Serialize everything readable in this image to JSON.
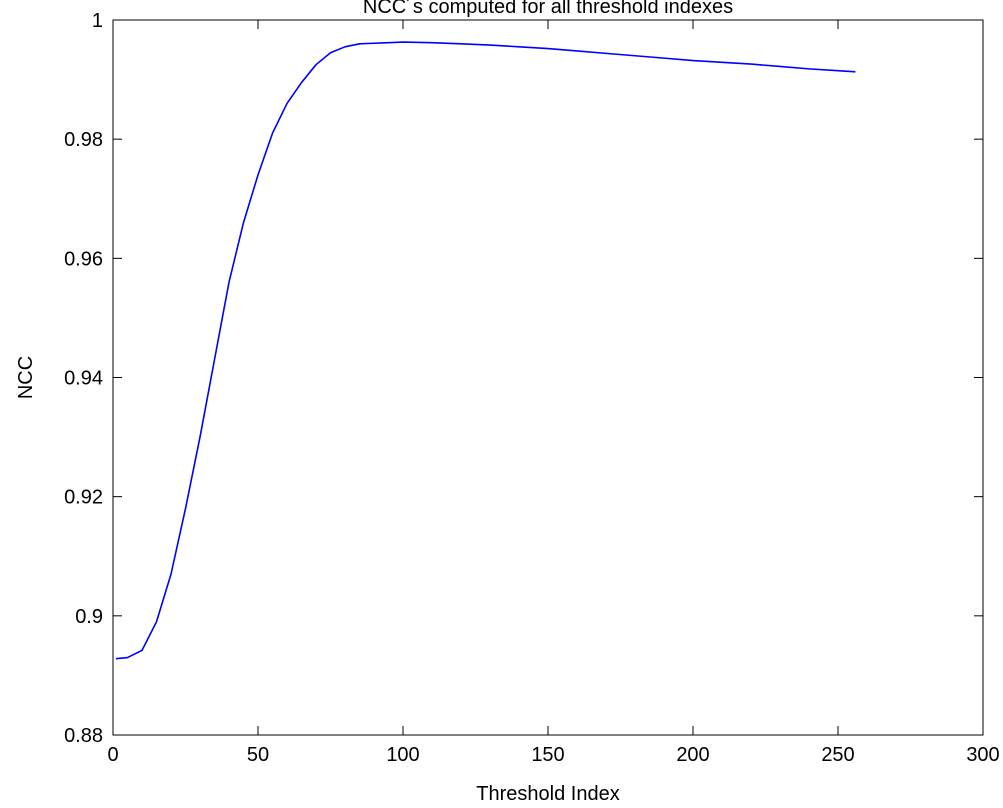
{
  "chart_data": {
    "type": "line",
    "title": "NCC´s computed for all threshold indexes",
    "xlabel": "Threshold Index",
    "ylabel": "NCC",
    "xlim": [
      0,
      300
    ],
    "ylim": [
      0.88,
      1
    ],
    "xticks": [
      0,
      50,
      100,
      150,
      200,
      250,
      300
    ],
    "xtick_labels": [
      "0",
      "50",
      "100",
      "150",
      "200",
      "250",
      "300"
    ],
    "yticks": [
      0.88,
      0.9,
      0.92,
      0.94,
      0.96,
      0.98,
      1
    ],
    "ytick_labels": [
      "0.88",
      "0.9",
      "0.92",
      "0.94",
      "0.96",
      "0.98",
      "1"
    ],
    "grid": false,
    "series": [
      {
        "color": "#0000ff",
        "x": [
          1,
          5,
          10,
          15,
          20,
          25,
          30,
          35,
          40,
          45,
          50,
          55,
          60,
          65,
          70,
          75,
          80,
          85,
          90,
          95,
          100,
          110,
          120,
          130,
          140,
          150,
          160,
          170,
          180,
          190,
          200,
          210,
          220,
          230,
          240,
          250,
          256
        ],
        "y": [
          0.8928,
          0.893,
          0.8942,
          0.899,
          0.907,
          0.918,
          0.93,
          0.943,
          0.956,
          0.966,
          0.974,
          0.981,
          0.986,
          0.9895,
          0.9925,
          0.9945,
          0.9955,
          0.996,
          0.9961,
          0.9962,
          0.9963,
          0.9962,
          0.996,
          0.9958,
          0.9955,
          0.9952,
          0.9948,
          0.9944,
          0.994,
          0.9936,
          0.9932,
          0.9929,
          0.9926,
          0.9922,
          0.9918,
          0.9915,
          0.9913
        ]
      }
    ]
  }
}
